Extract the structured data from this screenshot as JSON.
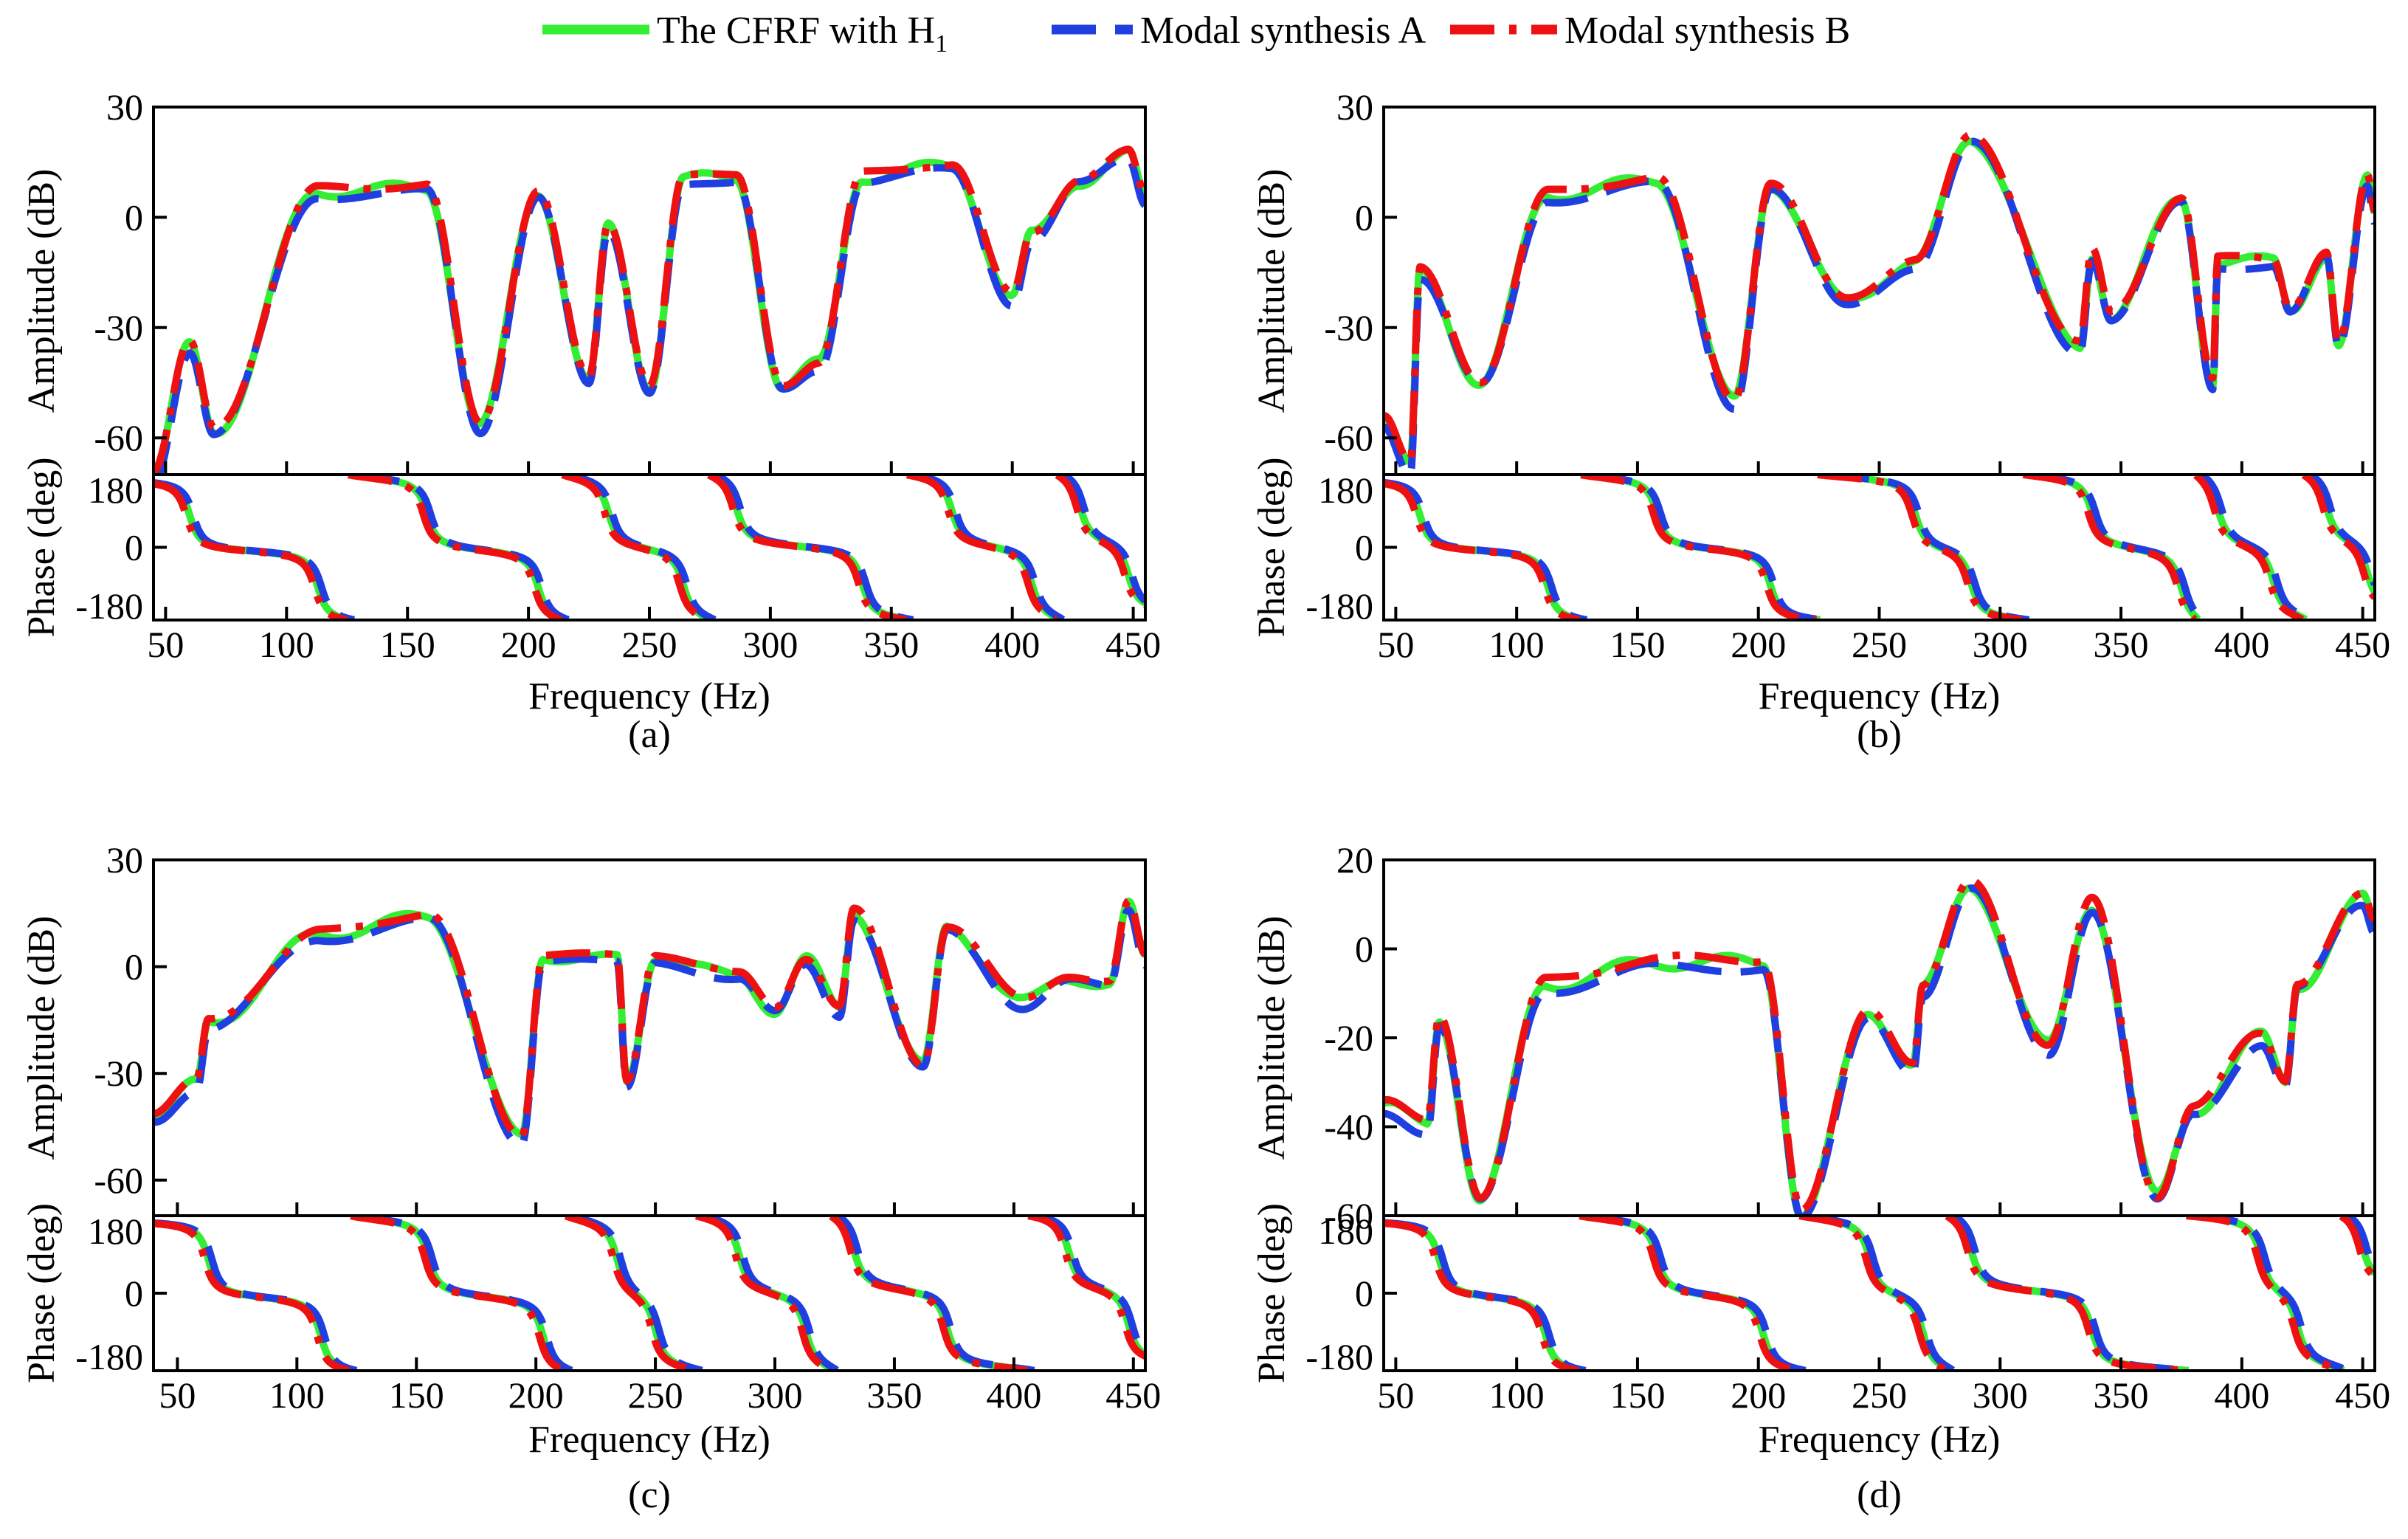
{
  "legend": {
    "placement": "top-center",
    "entries": [
      {
        "label": "The CFRF with H",
        "sub": "1",
        "color": "#33ee33",
        "dash": "solid"
      },
      {
        "label": "Modal synthesis A",
        "sub": "",
        "color": "#1f3fe0",
        "dash": "dashed"
      },
      {
        "label": "Modal synthesis B",
        "sub": "",
        "color": "#ee1111",
        "dash": "dashdot"
      }
    ]
  },
  "chart_data": [
    {
      "type": "line",
      "panel_label": "(a)",
      "xlabel": "Frequency (Hz)",
      "xlim": [
        45,
        455
      ],
      "xticks": [
        50,
        100,
        150,
        200,
        250,
        300,
        350,
        400,
        450
      ],
      "amplitude": {
        "ylabel": "Amplitude (dB)",
        "ylim": [
          -70,
          30
        ],
        "yticks": [
          30,
          0,
          -30,
          -60
        ],
        "peaks": [
          [
            60,
            -35
          ],
          [
            113,
            7
          ],
          [
            158,
            8
          ],
          [
            204,
            7
          ],
          [
            233,
            -3
          ],
          [
            264,
            11
          ],
          [
            286,
            10
          ],
          [
            338,
            11
          ],
          [
            375,
            14
          ],
          [
            408,
            -5
          ],
          [
            428,
            10
          ],
          [
            448,
            17
          ]
        ],
        "antires": [
          [
            70,
            -58
          ],
          [
            180,
            -57
          ],
          [
            225,
            -45
          ],
          [
            250,
            -46
          ],
          [
            305,
            -46
          ],
          [
            320,
            -40
          ],
          [
            400,
            -22
          ]
        ],
        "start": -70,
        "end": 5
      },
      "phase": {
        "ylabel": "Phase (deg)",
        "ylim": [
          -180,
          180
        ],
        "yticks": [
          180,
          0,
          -180
        ]
      }
    },
    {
      "type": "line",
      "panel_label": "(b)",
      "xlabel": "Frequency (Hz)",
      "xlim": [
        45,
        455
      ],
      "xticks": [
        50,
        100,
        150,
        200,
        250,
        300,
        350,
        400,
        450
      ],
      "amplitude": {
        "ylabel": "Amplitude (dB)",
        "ylim": [
          -70,
          30
        ],
        "yticks": [
          30,
          0,
          -30,
          -60
        ],
        "peaks": [
          [
            60,
            -15
          ],
          [
            113,
            6
          ],
          [
            158,
            10
          ],
          [
            205,
            9
          ],
          [
            265,
            -12
          ],
          [
            288,
            21
          ],
          [
            338,
            -10
          ],
          [
            375,
            5
          ],
          [
            390,
            -12
          ],
          [
            413,
            -12
          ],
          [
            435,
            -10
          ],
          [
            452,
            10
          ]
        ],
        "antires": [
          [
            56,
            -68
          ],
          [
            85,
            -45
          ],
          [
            190,
            -50
          ],
          [
            236,
            -23
          ],
          [
            333,
            -35
          ],
          [
            346,
            -27
          ],
          [
            388,
            -45
          ],
          [
            420,
            -25
          ],
          [
            440,
            -35
          ]
        ],
        "start": -55,
        "end": 0
      },
      "phase": {
        "ylabel": "Phase (deg)",
        "ylim": [
          -180,
          180
        ],
        "yticks": [
          180,
          0,
          -180
        ]
      }
    },
    {
      "type": "line",
      "panel_label": "(c)",
      "xlabel": "Frequency (Hz)",
      "xlim": [
        40,
        455
      ],
      "xticks": [
        50,
        100,
        150,
        200,
        250,
        300,
        350,
        400,
        450
      ],
      "amplitude": {
        "ylabel": "Amplitude (dB)",
        "ylim": [
          -70,
          30
        ],
        "yticks": [
          30,
          0,
          -30,
          -60
        ],
        "peaks": [
          [
            63,
            -16
          ],
          [
            110,
            9
          ],
          [
            155,
            14
          ],
          [
            203,
            3
          ],
          [
            234,
            2
          ],
          [
            250,
            3
          ],
          [
            285,
            -3
          ],
          [
            313,
            2
          ],
          [
            333,
            15
          ],
          [
            372,
            11
          ],
          [
            423,
            -3
          ],
          [
            448,
            17
          ]
        ],
        "antires": [
          [
            58,
            -33
          ],
          [
            194,
            -48
          ],
          [
            238,
            -33
          ],
          [
            300,
            -12
          ],
          [
            327,
            -12
          ],
          [
            362,
            -28
          ],
          [
            404,
            -10
          ],
          [
            440,
            -5
          ]
        ],
        "start": -42,
        "end": 2
      },
      "phase": {
        "ylabel": "Phase (deg)",
        "ylim": [
          -180,
          180
        ],
        "yticks": [
          180,
          0,
          -180
        ]
      }
    },
    {
      "type": "line",
      "panel_label": "(d)",
      "xlabel": "Frequency (Hz)",
      "xlim": [
        45,
        455
      ],
      "xticks": [
        50,
        100,
        150,
        200,
        250,
        300,
        350,
        400,
        450
      ],
      "amplitude": {
        "ylabel": "Amplitude (dB)",
        "ylim": [
          -60,
          20
        ],
        "yticks": [
          20,
          0,
          -20,
          -40,
          -60
        ],
        "peaks": [
          [
            68,
            -16
          ],
          [
            112,
            -8
          ],
          [
            158,
            -3
          ],
          [
            202,
            -3
          ],
          [
            246,
            -14
          ],
          [
            268,
            -9
          ],
          [
            288,
            14
          ],
          [
            338,
            10
          ],
          [
            408,
            -20
          ],
          [
            423,
            -8
          ],
          [
            450,
            11
          ]
        ],
        "antires": [
          [
            63,
            -40
          ],
          [
            85,
            -56
          ],
          [
            218,
            -60
          ],
          [
            264,
            -26
          ],
          [
            320,
            -22
          ],
          [
            365,
            -56
          ],
          [
            380,
            -36
          ],
          [
            418,
            -30
          ]
        ],
        "start": -35,
        "end": 5
      },
      "phase": {
        "ylabel": "Phase (deg)",
        "ylim": [
          -180,
          180
        ],
        "yticks": [
          180,
          0,
          -180
        ]
      }
    }
  ]
}
